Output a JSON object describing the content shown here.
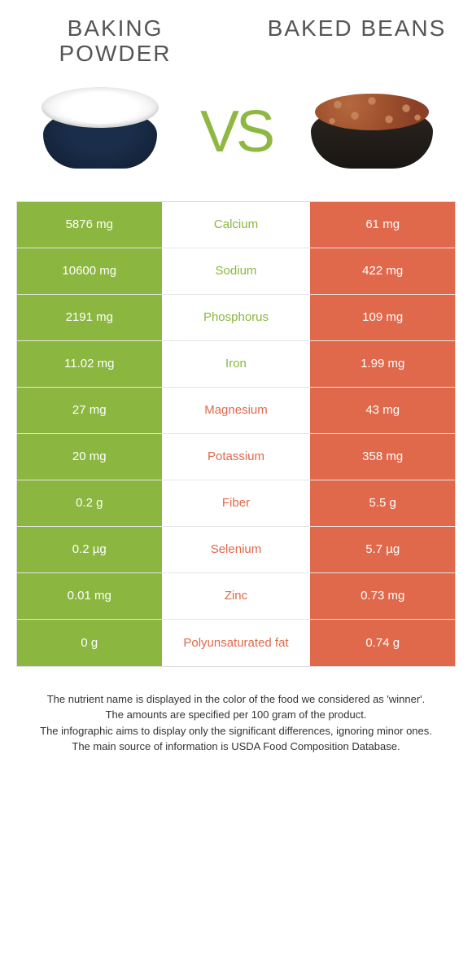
{
  "colors": {
    "green": "#8bb63f",
    "orange": "#e0684b",
    "background": "#ffffff",
    "border": "#e5e5e5"
  },
  "header": {
    "left_title": "BAKING POWDER",
    "right_title": "BAKED BEANS",
    "vs": "VS"
  },
  "table": {
    "rows": [
      {
        "left": "5876 mg",
        "nutrient": "Calcium",
        "right": "61 mg",
        "winner": "left"
      },
      {
        "left": "10600 mg",
        "nutrient": "Sodium",
        "right": "422 mg",
        "winner": "left"
      },
      {
        "left": "2191 mg",
        "nutrient": "Phosphorus",
        "right": "109 mg",
        "winner": "left"
      },
      {
        "left": "11.02 mg",
        "nutrient": "Iron",
        "right": "1.99 mg",
        "winner": "left"
      },
      {
        "left": "27 mg",
        "nutrient": "Magnesium",
        "right": "43 mg",
        "winner": "right"
      },
      {
        "left": "20 mg",
        "nutrient": "Potassium",
        "right": "358 mg",
        "winner": "right"
      },
      {
        "left": "0.2 g",
        "nutrient": "Fiber",
        "right": "5.5 g",
        "winner": "right"
      },
      {
        "left": "0.2 µg",
        "nutrient": "Selenium",
        "right": "5.7 µg",
        "winner": "right"
      },
      {
        "left": "0.01 mg",
        "nutrient": "Zinc",
        "right": "0.73 mg",
        "winner": "right"
      },
      {
        "left": "0 g",
        "nutrient": "Polyunsaturated fat",
        "right": "0.74 g",
        "winner": "right"
      }
    ]
  },
  "footer": {
    "line1": "The nutrient name is displayed in the color of the food we considered as 'winner'.",
    "line2": "The amounts are specified per 100 gram of the product.",
    "line3": "The infographic aims to display only the significant differences, ignoring minor ones.",
    "line4": "The main source of information is USDA Food Composition Database."
  }
}
